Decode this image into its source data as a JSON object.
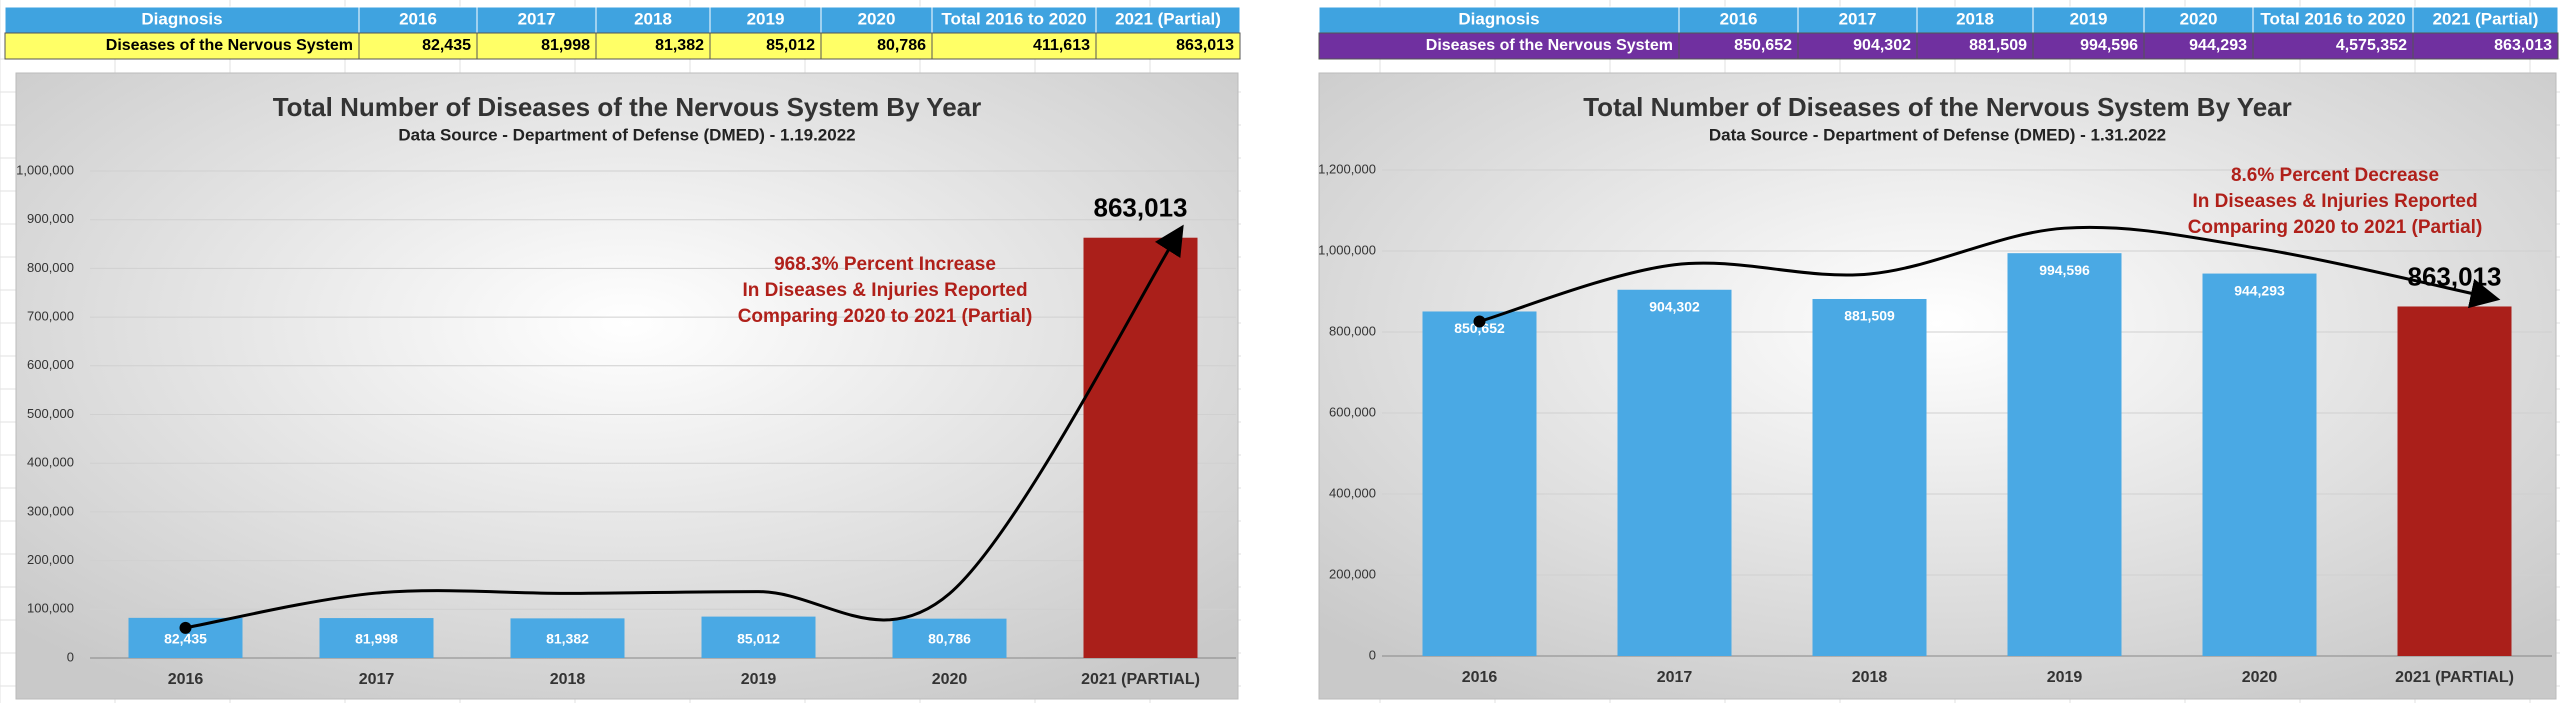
{
  "tables": [
    {
      "header": [
        "Diagnosis",
        "2016",
        "2017",
        "2018",
        "2019",
        "2020",
        "Total 2016 to 2020",
        "2021 (Partial)"
      ],
      "rows": [
        [
          "Diseases of the Nervous System",
          "82,435",
          "81,998",
          "81,382",
          "85,012",
          "80,786",
          "411,613",
          "863,013"
        ]
      ]
    },
    {
      "header": [
        "Diagnosis",
        "2016",
        "2017",
        "2018",
        "2019",
        "2020",
        "Total 2016 to 2020",
        "2021 (Partial)"
      ],
      "rows": [
        [
          "Diseases of the Nervous System",
          "850,652",
          "904,302",
          "881,509",
          "994,596",
          "944,293",
          "4,575,352",
          "863,013"
        ]
      ]
    }
  ],
  "chart_data": [
    {
      "type": "bar",
      "title": "Total Number of Diseases of the Nervous System By Year",
      "subtitle": "Data Source - Department of Defense (DMED) - 1.19.2022",
      "categories": [
        "2016",
        "2017",
        "2018",
        "2019",
        "2020",
        "2021 (PARTIAL)"
      ],
      "values": [
        82435,
        81998,
        81382,
        85012,
        80786,
        863013
      ],
      "value_labels": [
        "82,435",
        "81,998",
        "81,382",
        "85,012",
        "80,786",
        "863,013"
      ],
      "colors": [
        "#4aa9e4",
        "#4aa9e4",
        "#4aa9e4",
        "#4aa9e4",
        "#4aa9e4",
        "#aa1f1a"
      ],
      "annotation": [
        "968.3% Percent Increase",
        "In Diseases & Injuries Reported",
        "Comparing 2020 to 2021 (Partial)"
      ],
      "ylim": [
        0,
        1000000
      ],
      "yticks": [
        0,
        {
          "value": 100000,
          "label": "100,000"
        },
        {
          "value": 200000,
          "label": "200,000"
        },
        {
          "value": 300000,
          "label": "300,000"
        },
        {
          "value": 400000,
          "label": "400,000"
        },
        {
          "value": 500000,
          "label": "500,000"
        },
        {
          "value": 600000,
          "label": "600,000"
        },
        {
          "value": 700000,
          "label": "700,000"
        },
        {
          "value": 800000,
          "label": "800,000"
        },
        {
          "value": 900000,
          "label": "900,000"
        },
        {
          "value": 1000000,
          "label": "1,000,000"
        }
      ],
      "grid": true
    },
    {
      "type": "bar",
      "title": "Total Number of Diseases of the Nervous System By Year",
      "subtitle": "Data Source - Department of Defense (DMED) - 1.31.2022",
      "categories": [
        "2016",
        "2017",
        "2018",
        "2019",
        "2020",
        "2021 (PARTIAL)"
      ],
      "values": [
        850652,
        904302,
        881509,
        994596,
        944293,
        863013
      ],
      "value_labels": [
        "850,652",
        "904,302",
        "881,509",
        "994,596",
        "944,293",
        "863,013"
      ],
      "colors": [
        "#4aa9e4",
        "#4aa9e4",
        "#4aa9e4",
        "#4aa9e4",
        "#4aa9e4",
        "#aa1f1a"
      ],
      "annotation": [
        "8.6% Percent Decrease",
        "In Diseases & Injuries Reported",
        "Comparing 2020 to 2021 (Partial)"
      ],
      "ylim": [
        0,
        1200000
      ],
      "yticks": [
        0,
        {
          "value": 200000,
          "label": "200,000"
        },
        {
          "value": 400000,
          "label": "400,000"
        },
        {
          "value": 600000,
          "label": "600,000"
        },
        {
          "value": 800000,
          "label": "800,000"
        },
        {
          "value": 1000000,
          "label": "1,000,000"
        },
        {
          "value": 1200000,
          "label": "1,200,000"
        }
      ],
      "grid": true
    }
  ]
}
